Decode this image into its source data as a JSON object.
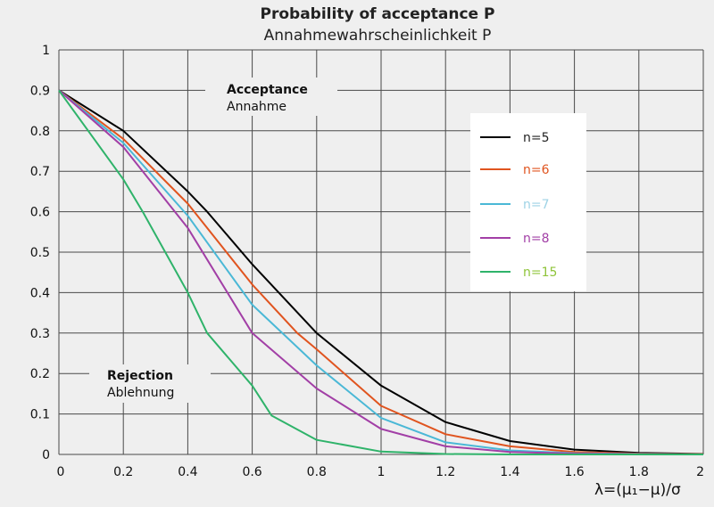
{
  "chart_data": {
    "type": "line",
    "title": "Probability of acceptance P",
    "subtitle": "Annahmewahrscheinlichkeit P",
    "xlabel": "λ=(μ₁−μ)/σ",
    "ylabel": "",
    "xlim": [
      0,
      2
    ],
    "ylim": [
      0,
      1
    ],
    "xticks": [
      "0",
      "0.2",
      "0.4",
      "0.6",
      "0.8",
      "1",
      "1.2",
      "1.4",
      "1.6",
      "1.8",
      "2"
    ],
    "yticks": [
      "0",
      "0.1",
      "0.2",
      "0.3",
      "0.4",
      "0.5",
      "0.6",
      "0.7",
      "0.8",
      "0.9",
      "1"
    ],
    "grid": true,
    "legend_position": "right",
    "annotations": [
      {
        "bold": "Acceptance",
        "text": "Annahme"
      },
      {
        "bold": "Rejection",
        "text": "Ablehnung"
      }
    ],
    "series": [
      {
        "name": "n=5",
        "color": "#000000",
        "label_color": "#222222",
        "x": [
          0,
          0.2,
          0.4,
          0.46,
          0.6,
          0.8,
          1.0,
          1.2,
          1.4,
          1.6,
          1.8,
          2.0
        ],
        "y": [
          0.9,
          0.8,
          0.65,
          0.6,
          0.47,
          0.3,
          0.17,
          0.08,
          0.033,
          0.012,
          0.004,
          0.001
        ]
      },
      {
        "name": "n=6",
        "color": "#e0541f",
        "label_color": "#e0541f",
        "x": [
          0,
          0.2,
          0.4,
          0.6,
          0.74,
          0.8,
          1.0,
          1.2,
          1.4,
          1.6,
          1.8,
          2.0
        ],
        "y": [
          0.9,
          0.78,
          0.62,
          0.42,
          0.3,
          0.26,
          0.12,
          0.05,
          0.02,
          0.006,
          0.002,
          0.0005
        ]
      },
      {
        "name": "n=7",
        "color": "#4ab8d6",
        "label_color": "#9fd3e6",
        "x": [
          0,
          0.2,
          0.4,
          0.6,
          0.8,
          1.0,
          1.2,
          1.4,
          1.6,
          1.8,
          2.0
        ],
        "y": [
          0.9,
          0.77,
          0.59,
          0.37,
          0.22,
          0.09,
          0.03,
          0.01,
          0.003,
          0.001,
          0
        ]
      },
      {
        "name": "n=8",
        "color": "#a23fa6",
        "label_color": "#a23fa6",
        "x": [
          0,
          0.2,
          0.4,
          0.6,
          0.8,
          1.0,
          1.2,
          1.4,
          1.6,
          1.8,
          2.0
        ],
        "y": [
          0.9,
          0.76,
          0.56,
          0.3,
          0.163,
          0.063,
          0.02,
          0.006,
          0.002,
          0.0005,
          0
        ]
      },
      {
        "name": "n=15",
        "color": "#2fb36a",
        "label_color": "#8fc43a",
        "x": [
          0,
          0.2,
          0.26,
          0.4,
          0.46,
          0.6,
          0.66,
          0.8,
          1.0,
          1.2,
          1.4,
          2.0
        ],
        "y": [
          0.9,
          0.68,
          0.6,
          0.4,
          0.3,
          0.17,
          0.096,
          0.036,
          0.007,
          0.001,
          0,
          0
        ]
      }
    ]
  }
}
